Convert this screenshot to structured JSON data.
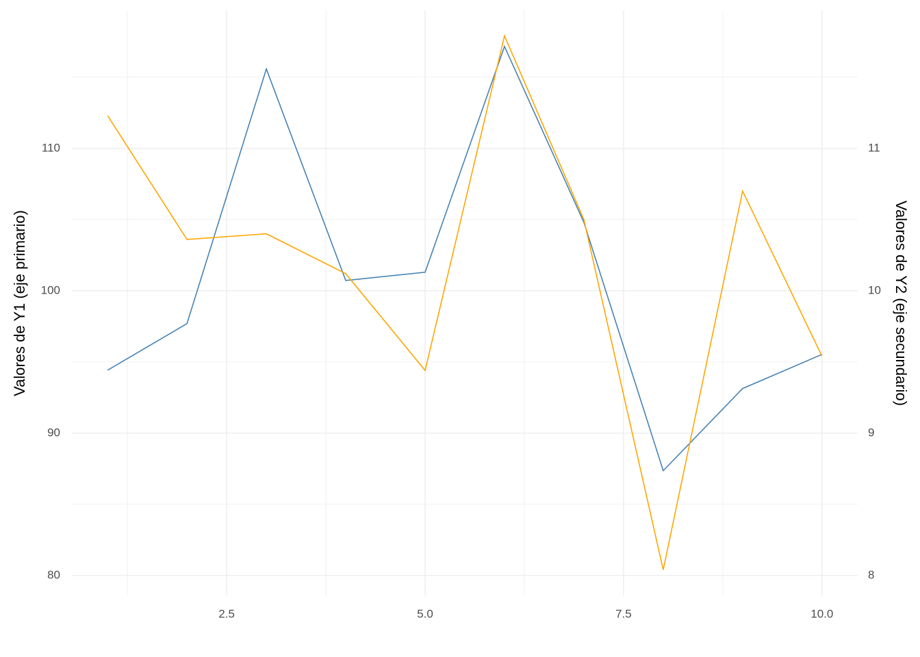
{
  "chart_data": {
    "type": "line",
    "x": [
      1,
      2,
      3,
      4,
      5,
      6,
      7,
      8,
      9,
      10
    ],
    "series": [
      {
        "name": "Y1",
        "color": "#4682b4",
        "values": [
          94.42,
          97.69,
          115.58,
          100.72,
          101.3,
          117.16,
          104.81,
          87.36,
          93.13,
          95.53
        ]
      },
      {
        "name": "Y2",
        "color": "#ffa500",
        "axis": "y2",
        "values": [
          11.23,
          10.36,
          10.4,
          10.12,
          9.44,
          11.79,
          10.5,
          8.04,
          10.7,
          9.54
        ]
      }
    ],
    "xlim": [
      0.55,
      10.45
    ],
    "xticks": [
      {
        "value": 2.5,
        "label": "2.5"
      },
      {
        "value": 5,
        "label": "5.0"
      },
      {
        "value": 7.5,
        "label": "7.5"
      },
      {
        "value": 10,
        "label": "10.0"
      }
    ],
    "ylim": [
      78.6,
      119.7
    ],
    "yticks": [
      80,
      90,
      100,
      110
    ],
    "y2lim": [
      7.86,
      11.97
    ],
    "y2ticks": [
      8,
      9,
      10,
      11
    ],
    "ylabel": "Valores de Y1 (eje primario)",
    "y2label": "Valores de Y2 (eje secundario)",
    "grid": true
  }
}
